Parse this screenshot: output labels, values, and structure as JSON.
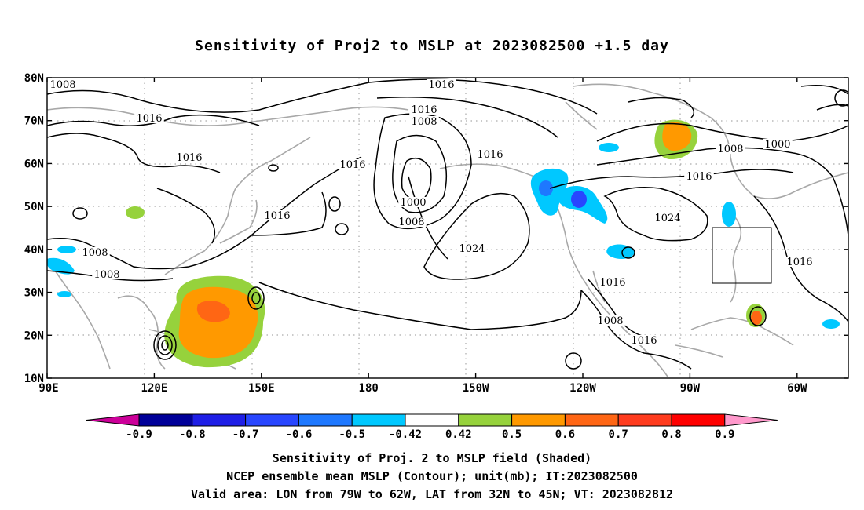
{
  "title": "Sensitivity of Proj2 to MSLP at 2023082500 +1.5 day",
  "map": {
    "lat_labels": [
      "80N",
      "70N",
      "60N",
      "50N",
      "40N",
      "30N",
      "20N",
      "10N"
    ],
    "lon_labels": [
      "90E",
      "120E",
      "150E",
      "180",
      "150W",
      "120W",
      "90W",
      "60W"
    ],
    "contour_labels": [
      {
        "text": "1008"
      },
      {
        "text": "1008"
      },
      {
        "text": "1016"
      },
      {
        "text": "1016"
      },
      {
        "text": "1016"
      },
      {
        "text": "1008"
      },
      {
        "text": "1016"
      },
      {
        "text": "1016"
      },
      {
        "text": "1000"
      },
      {
        "text": "1008"
      },
      {
        "text": "1024"
      },
      {
        "text": "1008"
      },
      {
        "text": "1008"
      },
      {
        "text": "1000"
      },
      {
        "text": "1016"
      },
      {
        "text": "1024"
      },
      {
        "text": "1016"
      },
      {
        "text": "1016"
      },
      {
        "text": "1008"
      },
      {
        "text": "1016"
      },
      {
        "text": "1016"
      },
      {
        "text": "1016"
      }
    ],
    "valid_area": {
      "lon_west": "79W",
      "lon_east": "62W",
      "lat_south": "32N",
      "lat_north": "45N"
    }
  },
  "colorbar": {
    "labels": [
      "-0.9",
      "-0.8",
      "-0.7",
      "-0.6",
      "-0.5",
      "-0.42",
      "0.42",
      "0.5",
      "0.6",
      "0.7",
      "0.8",
      "0.9"
    ],
    "colors": [
      "#000099",
      "#1e1ee6",
      "#2846ff",
      "#1e78ff",
      "#00c8ff",
      "#ffffff",
      "#96d23c",
      "#ff9900",
      "#ff6614",
      "#ff3c1e",
      "#ff0000"
    ],
    "low_extend_color": "#cc0099",
    "high_extend_color": "#ff99cc"
  },
  "captions": {
    "line1": "Sensitivity of Proj. 2 to MSLP field (Shaded)",
    "line2": "NCEP ensemble mean MSLP (Contour); unit(mb); IT:2023082500",
    "line3": "Valid area: LON from 79W to 62W, LAT from 32N to 45N; VT: 2023082812"
  }
}
